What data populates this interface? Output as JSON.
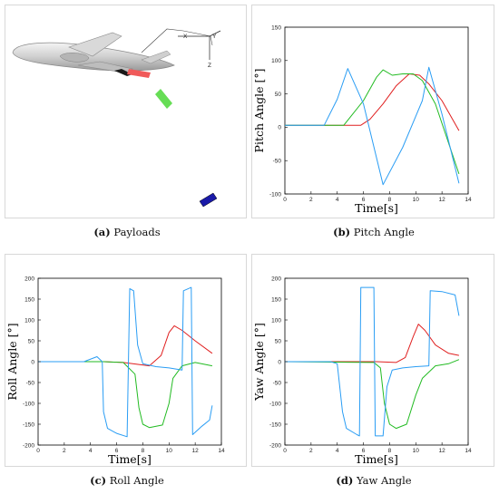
{
  "panels": [
    {
      "letter": "(a)",
      "caption": "Payloads"
    },
    {
      "letter": "(b)",
      "caption": "Pitch Angle"
    },
    {
      "letter": "(c)",
      "caption": "Roll Angle"
    },
    {
      "letter": "(d)",
      "caption": "Yaw Angle"
    }
  ],
  "axes_labels": {
    "x": "X",
    "y": "Y",
    "z": "Z"
  },
  "payload_colors": {
    "red": "#f05a5a",
    "green": "#66dd55",
    "blue": "#1a1aa8"
  },
  "series_colors": [
    "#e02020",
    "#22bb22",
    "#2a9df4"
  ],
  "chart_data": [
    {
      "id": "pitch",
      "type": "line",
      "xlabel": "Time[s]",
      "ylabel": "Pitch Angle [°]",
      "xlim": [
        0,
        14
      ],
      "ylim": [
        -100,
        150
      ],
      "xticks": [
        0,
        2,
        4,
        6,
        8,
        10,
        12,
        14
      ],
      "yticks": [
        -100,
        -50,
        0,
        50,
        100,
        150
      ],
      "series": [
        {
          "color": "#e02020",
          "points": [
            [
              0,
              3
            ],
            [
              5.8,
              3
            ],
            [
              6.5,
              12
            ],
            [
              7.5,
              35
            ],
            [
              8.5,
              62
            ],
            [
              9.5,
              80
            ],
            [
              10.3,
              78
            ],
            [
              11,
              65
            ],
            [
              12,
              40
            ],
            [
              13.3,
              -5
            ]
          ]
        },
        {
          "color": "#22bb22",
          "points": [
            [
              0,
              3
            ],
            [
              4.5,
              3
            ],
            [
              6,
              40
            ],
            [
              7,
              75
            ],
            [
              7.5,
              86
            ],
            [
              8.2,
              78
            ],
            [
              9,
              80
            ],
            [
              9.8,
              80
            ],
            [
              10.5,
              70
            ],
            [
              11.5,
              35
            ],
            [
              13.3,
              -70
            ]
          ]
        },
        {
          "color": "#2a9df4",
          "points": [
            [
              0,
              3
            ],
            [
              3,
              3
            ],
            [
              4,
              42
            ],
            [
              4.8,
              88
            ],
            [
              6,
              35
            ],
            [
              7.5,
              -86
            ],
            [
              9,
              -30
            ],
            [
              10.5,
              40
            ],
            [
              11,
              90
            ],
            [
              12,
              20
            ],
            [
              13.3,
              -84
            ]
          ]
        }
      ]
    },
    {
      "id": "roll",
      "type": "line",
      "xlabel": "Time[s]",
      "ylabel": "Roll Angle [°]",
      "xlim": [
        0,
        14
      ],
      "ylim": [
        -200,
        200
      ],
      "xticks": [
        0,
        2,
        4,
        6,
        8,
        10,
        12,
        14
      ],
      "yticks": [
        -200,
        -150,
        -100,
        -50,
        0,
        50,
        100,
        150,
        200
      ],
      "series": [
        {
          "color": "#e02020",
          "points": [
            [
              0,
              0
            ],
            [
              5,
              0
            ],
            [
              6.5,
              -2
            ],
            [
              7.5,
              -6
            ],
            [
              8.5,
              -10
            ],
            [
              9.4,
              15
            ],
            [
              10,
              70
            ],
            [
              10.4,
              86
            ],
            [
              11,
              75
            ],
            [
              12,
              50
            ],
            [
              13.3,
              20
            ]
          ]
        },
        {
          "color": "#22bb22",
          "points": [
            [
              0,
              0
            ],
            [
              5,
              0
            ],
            [
              6.5,
              -2
            ],
            [
              7.4,
              -30
            ],
            [
              7.7,
              -110
            ],
            [
              8,
              -150
            ],
            [
              8.5,
              -158
            ],
            [
              9.5,
              -152
            ],
            [
              10,
              -100
            ],
            [
              10.3,
              -40
            ],
            [
              11,
              -10
            ],
            [
              12,
              -2
            ],
            [
              13.3,
              -10
            ]
          ]
        },
        {
          "color": "#2a9df4",
          "points": [
            [
              0,
              0
            ],
            [
              3.5,
              0
            ],
            [
              4.5,
              12
            ],
            [
              4.9,
              0
            ],
            [
              5,
              -120
            ],
            [
              5.3,
              -160
            ],
            [
              6,
              -172
            ],
            [
              6.8,
              -180
            ],
            [
              7,
              175
            ],
            [
              7.3,
              170
            ],
            [
              7.6,
              40
            ],
            [
              8,
              -5
            ],
            [
              9,
              -12
            ],
            [
              10,
              -15
            ],
            [
              11,
              -20
            ],
            [
              11.1,
              170
            ],
            [
              11.7,
              178
            ],
            [
              11.8,
              -175
            ],
            [
              12.5,
              -155
            ],
            [
              13.1,
              -140
            ],
            [
              13.3,
              -105
            ]
          ]
        }
      ]
    },
    {
      "id": "yaw",
      "type": "line",
      "xlabel": "Time[s]",
      "ylabel": "Yaw Angle [°]",
      "xlim": [
        0,
        14
      ],
      "ylim": [
        -200,
        200
      ],
      "xticks": [
        0,
        2,
        4,
        6,
        8,
        10,
        12,
        14
      ],
      "yticks": [
        -200,
        -150,
        -100,
        -50,
        0,
        50,
        100,
        150,
        200
      ],
      "series": [
        {
          "color": "#e02020",
          "points": [
            [
              0,
              0
            ],
            [
              7,
              0
            ],
            [
              8.5,
              -2
            ],
            [
              9.2,
              10
            ],
            [
              9.8,
              60
            ],
            [
              10.2,
              90
            ],
            [
              10.7,
              75
            ],
            [
              11.5,
              40
            ],
            [
              12.5,
              20
            ],
            [
              13.3,
              15
            ]
          ]
        },
        {
          "color": "#22bb22",
          "points": [
            [
              0,
              0
            ],
            [
              6.8,
              -2
            ],
            [
              7.3,
              -15
            ],
            [
              7.6,
              -100
            ],
            [
              8,
              -150
            ],
            [
              8.5,
              -160
            ],
            [
              9.3,
              -150
            ],
            [
              10,
              -80
            ],
            [
              10.5,
              -40
            ],
            [
              11.5,
              -10
            ],
            [
              12.5,
              -5
            ],
            [
              13.3,
              5
            ]
          ]
        },
        {
          "color": "#2a9df4",
          "points": [
            [
              0,
              0
            ],
            [
              3.5,
              0
            ],
            [
              4,
              -5
            ],
            [
              4.4,
              -120
            ],
            [
              4.7,
              -160
            ],
            [
              5.5,
              -175
            ],
            [
              5.7,
              -178
            ],
            [
              5.8,
              178
            ],
            [
              6.8,
              178
            ],
            [
              6.9,
              -178
            ],
            [
              7.5,
              -178
            ],
            [
              7.8,
              -60
            ],
            [
              8.2,
              -20
            ],
            [
              9,
              -15
            ],
            [
              10,
              -12
            ],
            [
              11,
              -10
            ],
            [
              11.1,
              170
            ],
            [
              12,
              168
            ],
            [
              13,
              160
            ],
            [
              13.3,
              110
            ]
          ]
        }
      ]
    }
  ]
}
